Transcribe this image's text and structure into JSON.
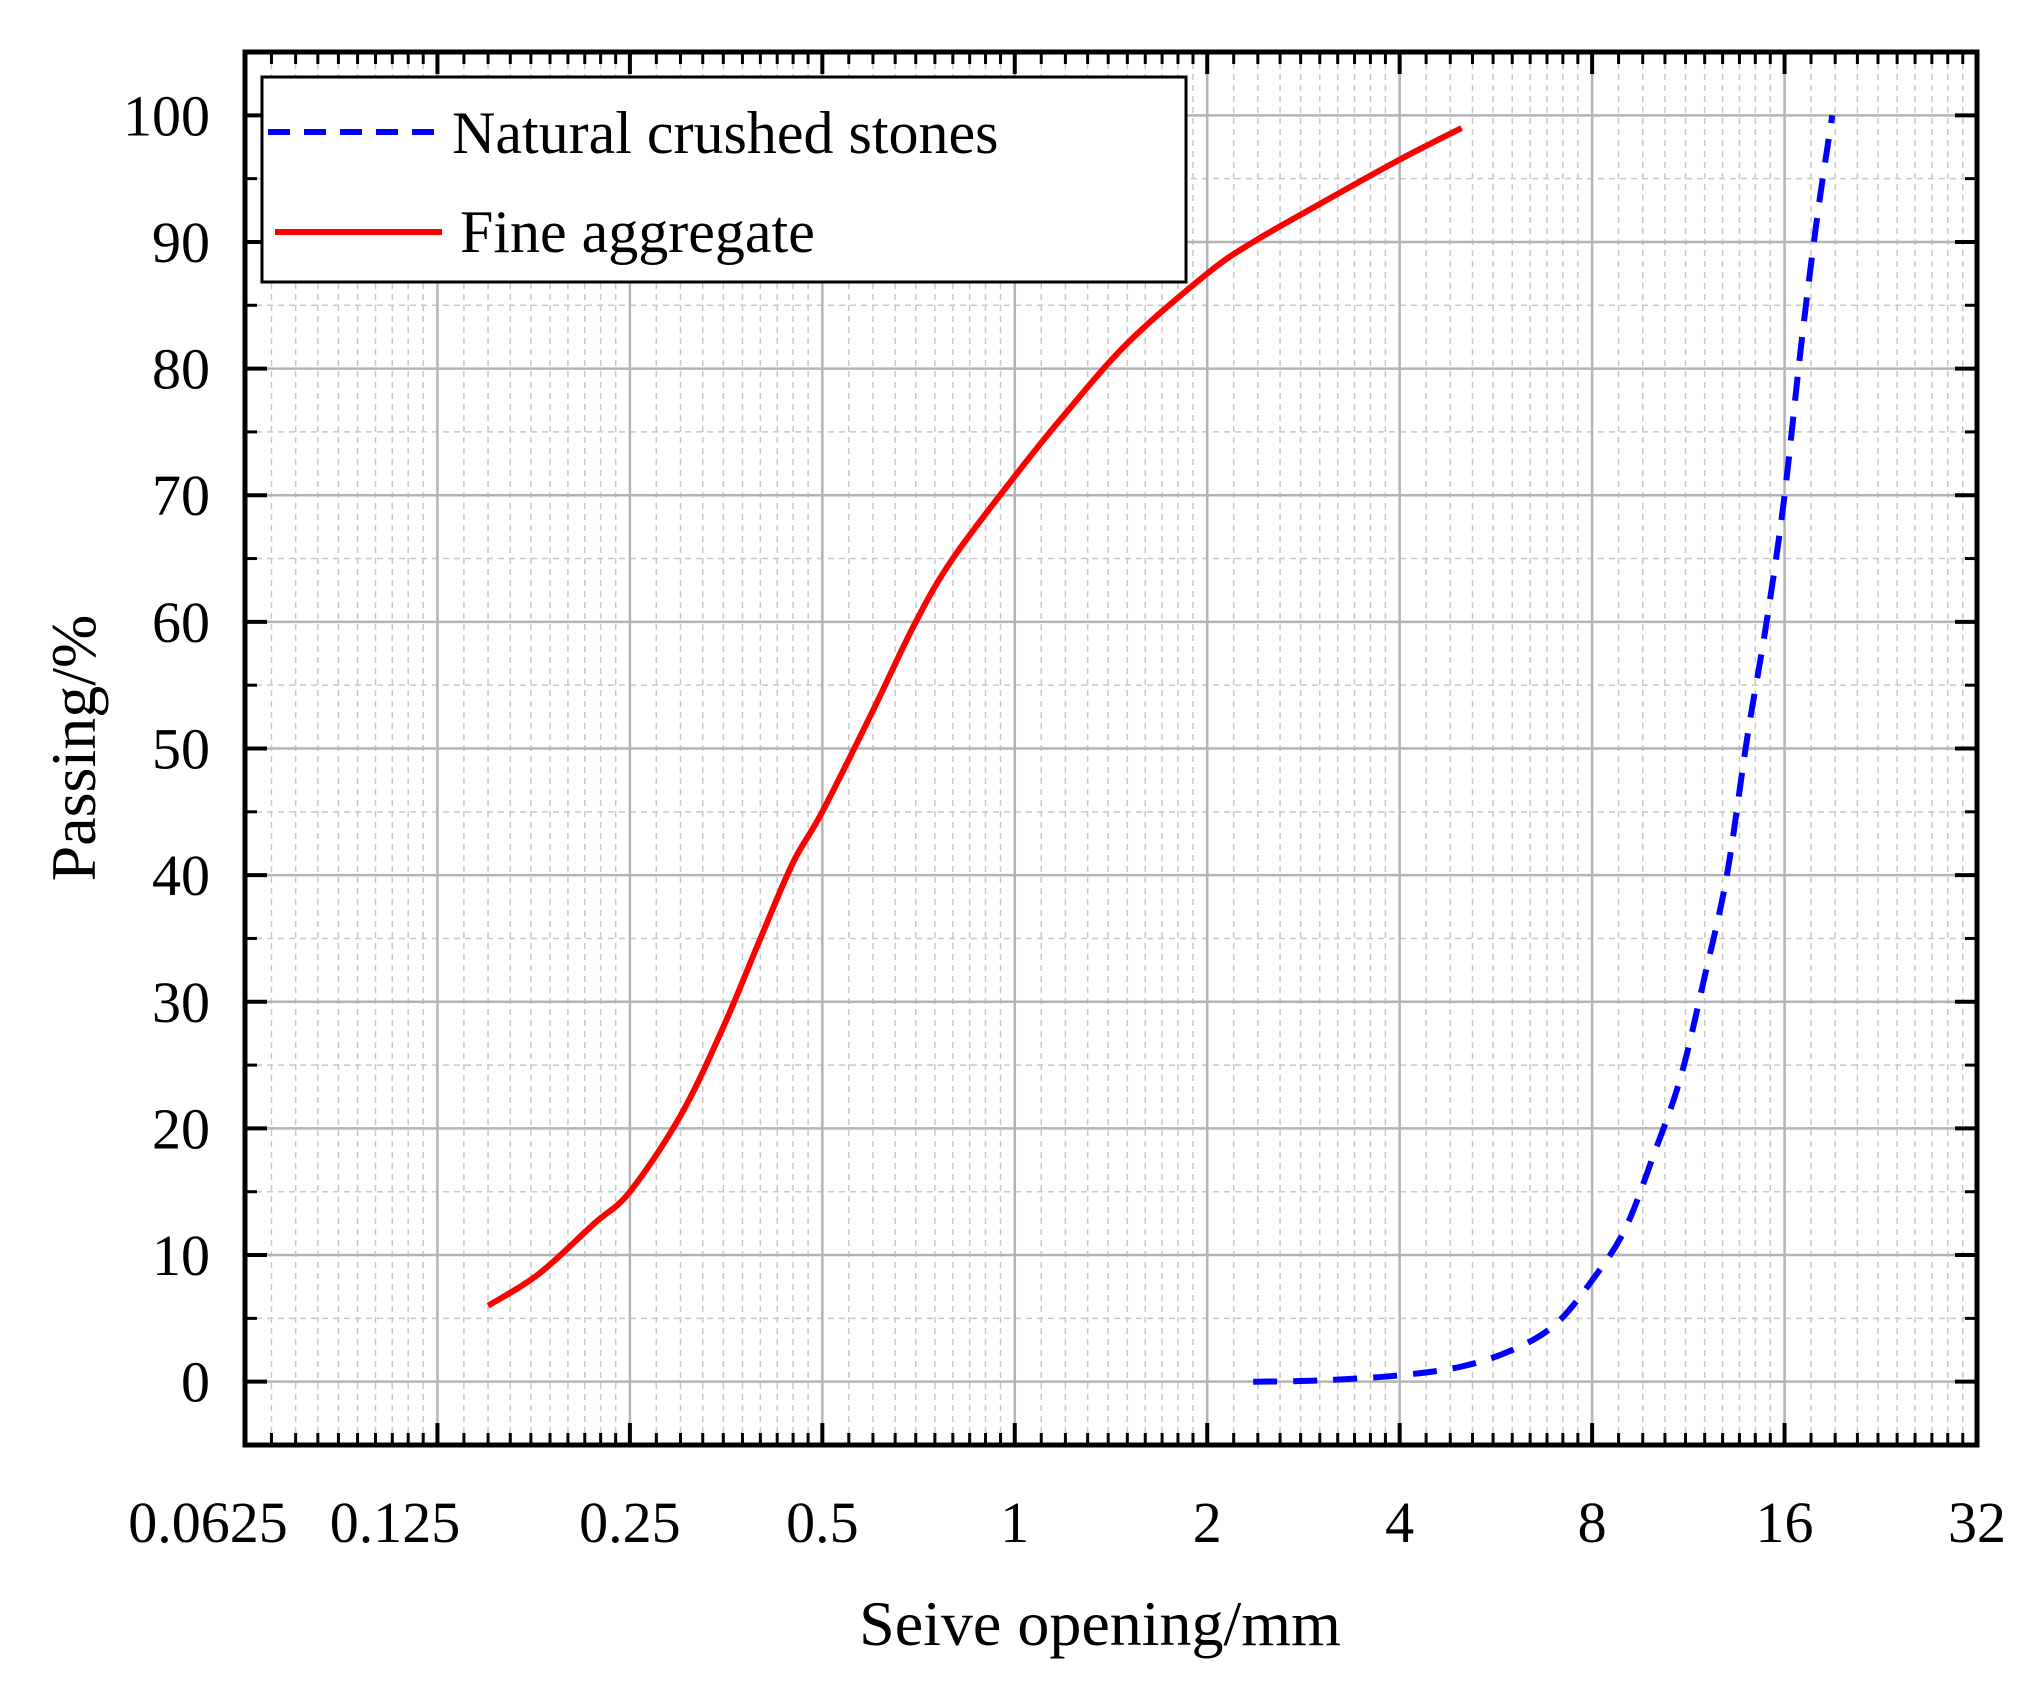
{
  "chart_data": {
    "type": "line",
    "xlabel": "Seive opening/mm",
    "ylabel": "Passing/%",
    "xscale": "log2",
    "xlim": [
      0.0625,
      32
    ],
    "ylim": [
      -5,
      105
    ],
    "grid": true,
    "legend_position": "top-left",
    "xticks": [
      {
        "value": 0.0625,
        "label": "0.0625"
      },
      {
        "value": 0.125,
        "label": "0.125"
      },
      {
        "value": 0.25,
        "label": "0.25"
      },
      {
        "value": 0.5,
        "label": "0.5"
      },
      {
        "value": 1,
        "label": "1"
      },
      {
        "value": 2,
        "label": "2"
      },
      {
        "value": 4,
        "label": "4"
      },
      {
        "value": 8,
        "label": "8"
      },
      {
        "value": 16,
        "label": "16"
      },
      {
        "value": 32,
        "label": "32"
      }
    ],
    "yticks": [
      0,
      10,
      20,
      30,
      40,
      50,
      60,
      70,
      80,
      90,
      100
    ],
    "series": [
      {
        "name": "Natural crushed stones",
        "color": "#0000ff",
        "style": "dashed",
        "points": [
          [
            2.36,
            0
          ],
          [
            3.0,
            0.1
          ],
          [
            4.0,
            0.5
          ],
          [
            5.0,
            1.2
          ],
          [
            6.0,
            2.5
          ],
          [
            7.0,
            4.5
          ],
          [
            8.0,
            8
          ],
          [
            9.0,
            12
          ],
          [
            10.0,
            18
          ],
          [
            11.0,
            24
          ],
          [
            12.0,
            32
          ],
          [
            13.0,
            40
          ],
          [
            14.0,
            51
          ],
          [
            15.0,
            60
          ],
          [
            16.0,
            70
          ],
          [
            17.0,
            82
          ],
          [
            18.0,
            92
          ],
          [
            19.0,
            100
          ]
        ]
      },
      {
        "name": "Fine aggregate",
        "color": "#ff0000",
        "style": "solid",
        "points": [
          [
            0.15,
            6
          ],
          [
            0.18,
            8.5
          ],
          [
            0.22,
            12.5
          ],
          [
            0.25,
            15
          ],
          [
            0.3,
            21
          ],
          [
            0.35,
            28
          ],
          [
            0.4,
            35
          ],
          [
            0.45,
            41
          ],
          [
            0.5,
            45
          ],
          [
            0.6,
            53
          ],
          [
            0.7,
            60
          ],
          [
            0.8,
            65
          ],
          [
            1.0,
            71.5
          ],
          [
            1.18,
            76
          ],
          [
            1.5,
            82
          ],
          [
            2.0,
            87.5
          ],
          [
            2.36,
            90
          ],
          [
            3.0,
            93
          ],
          [
            4.0,
            96.5
          ],
          [
            5.0,
            99
          ]
        ]
      }
    ]
  }
}
